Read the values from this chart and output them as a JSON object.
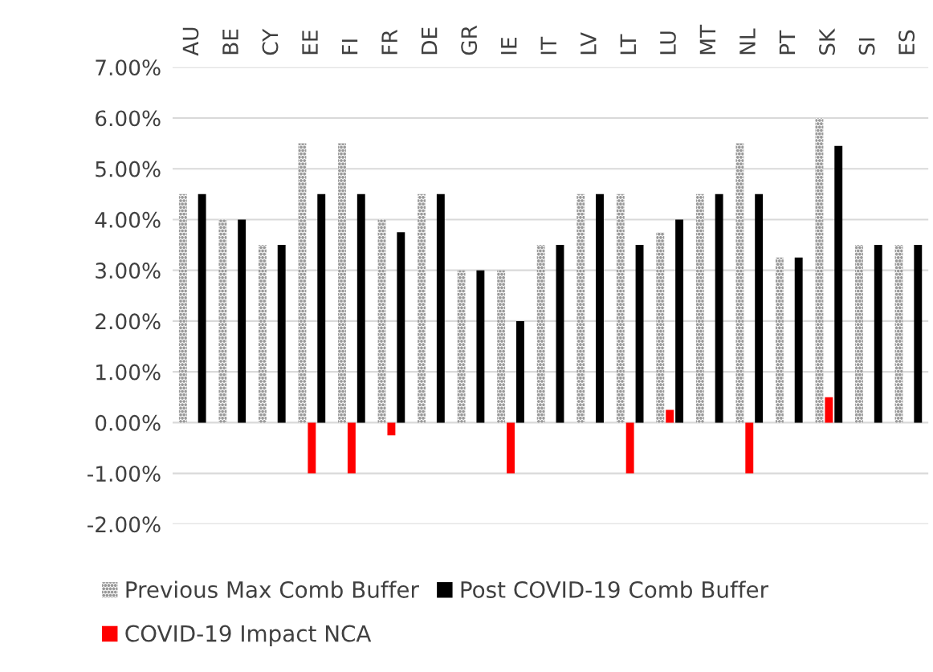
{
  "chart_data": {
    "type": "bar",
    "categories": [
      "AU",
      "BE",
      "CY",
      "EE",
      "FI",
      "FR",
      "DE",
      "GR",
      "IE",
      "IT",
      "LV",
      "LT",
      "LU",
      "MT",
      "NL",
      "PT",
      "SK",
      "SI",
      "ES"
    ],
    "series": [
      {
        "name": "Previous Max Comb Buffer",
        "color": "#9a9a9a",
        "values": [
          4.5,
          4,
          3.5,
          5.5,
          5.5,
          4,
          4.5,
          3,
          3,
          3.5,
          4.5,
          4.5,
          3.75,
          4.5,
          5.5,
          3.25,
          6,
          3.5,
          3.5
        ]
      },
      {
        "name": "COVID-19 Impact NCA",
        "color": "#ff0000",
        "values": [
          0,
          0,
          0,
          -1,
          -1,
          -0.25,
          0,
          0,
          -1,
          0,
          0,
          -1,
          0.25,
          0,
          -1,
          0,
          0.5,
          0,
          0
        ]
      },
      {
        "name": "Post COVID-19 Comb Buffer",
        "color": "#000000",
        "values": [
          4.5,
          4,
          3.5,
          4.5,
          4.5,
          3.75,
          4.5,
          3,
          2,
          3.5,
          4.5,
          3.5,
          4,
          4.5,
          4.5,
          3.25,
          5.45,
          3.5,
          3.5
        ]
      }
    ],
    "ylim": [
      -2,
      7
    ],
    "yticks": [
      {
        "value": -2,
        "label": "-2.00%"
      },
      {
        "value": -1,
        "label": "-1.00%"
      },
      {
        "value": 0,
        "label": "0.00%"
      },
      {
        "value": 1,
        "label": "1.00%"
      },
      {
        "value": 2,
        "label": "2.00%"
      },
      {
        "value": 3,
        "label": "3.00%"
      },
      {
        "value": 4,
        "label": "4.00%"
      },
      {
        "value": 5,
        "label": "5.00%"
      },
      {
        "value": 6,
        "label": "6.00%"
      },
      {
        "value": 7,
        "label": "7.00%"
      }
    ],
    "grid": "y",
    "legend": "bottom"
  }
}
